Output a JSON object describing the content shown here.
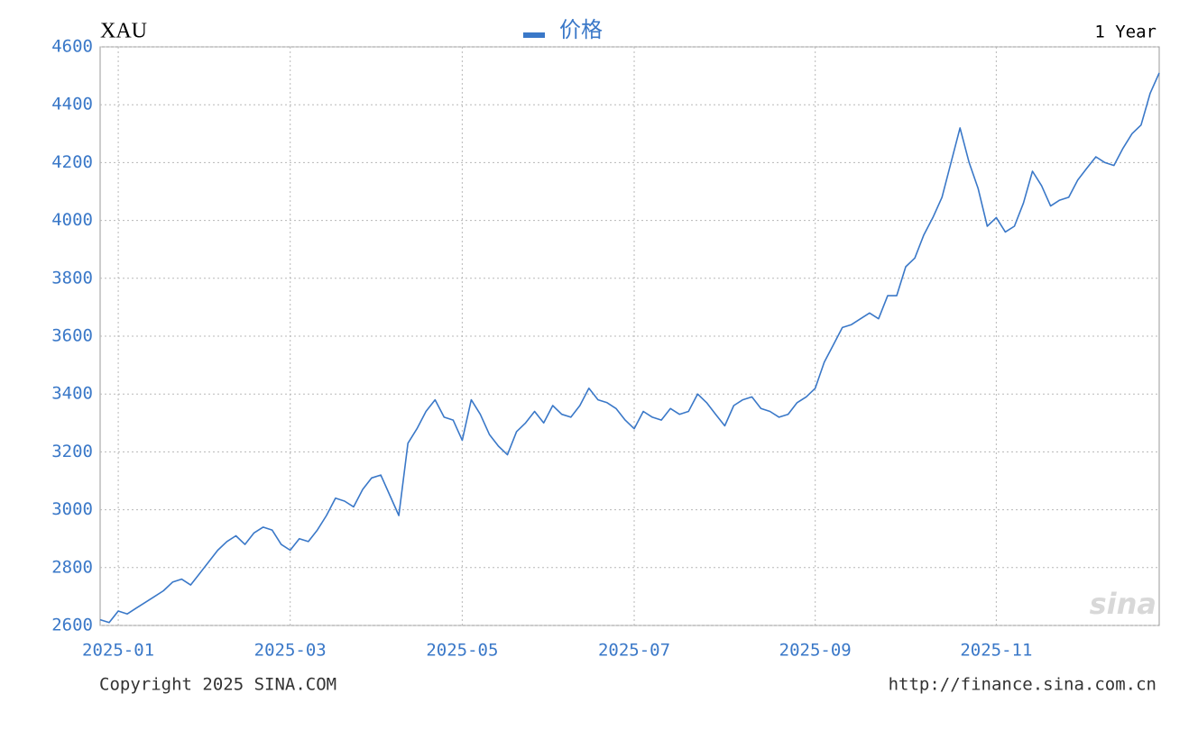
{
  "chart_data": {
    "type": "line",
    "title": "XAU",
    "period": "1 Year",
    "footer_left": "Copyright 2025 SINA.COM",
    "footer_right": "http://finance.sina.com.cn",
    "watermark": "sina",
    "categories": [
      null,
      null,
      "2025-01",
      null,
      null,
      null,
      null,
      null,
      null,
      null,
      null,
      null,
      null,
      null,
      null,
      null,
      null,
      null,
      null,
      null,
      null,
      "2025-03",
      null,
      null,
      null,
      null,
      null,
      null,
      null,
      null,
      null,
      null,
      null,
      null,
      null,
      null,
      null,
      null,
      null,
      null,
      "2025-05",
      null,
      null,
      null,
      null,
      null,
      null,
      null,
      null,
      null,
      null,
      null,
      null,
      null,
      null,
      null,
      null,
      null,
      null,
      "2025-07",
      null,
      null,
      null,
      null,
      null,
      null,
      null,
      null,
      null,
      null,
      null,
      null,
      null,
      null,
      null,
      null,
      null,
      null,
      null,
      "2025-09",
      null,
      null,
      null,
      null,
      null,
      null,
      null,
      null,
      null,
      null,
      null,
      null,
      null,
      null,
      null,
      null,
      null,
      null,
      null,
      "2025-11",
      null,
      null,
      null,
      null,
      null,
      null,
      null,
      null,
      null,
      null,
      null,
      null,
      null,
      null,
      null,
      null,
      null,
      null
    ],
    "series": [
      {
        "name": "价格",
        "color": "#3a78c8",
        "values": [
          2620,
          2610,
          2650,
          2640,
          2660,
          2680,
          2700,
          2720,
          2750,
          2760,
          2740,
          2780,
          2820,
          2860,
          2890,
          2910,
          2880,
          2920,
          2940,
          2930,
          2880,
          2860,
          2900,
          2890,
          2930,
          2980,
          3040,
          3030,
          3010,
          3070,
          3110,
          3120,
          3050,
          2980,
          3230,
          3280,
          3340,
          3380,
          3320,
          3310,
          3240,
          3380,
          3330,
          3260,
          3220,
          3190,
          3270,
          3300,
          3340,
          3300,
          3360,
          3330,
          3320,
          3360,
          3420,
          3380,
          3370,
          3350,
          3310,
          3280,
          3340,
          3320,
          3310,
          3350,
          3330,
          3340,
          3400,
          3370,
          3330,
          3290,
          3360,
          3380,
          3390,
          3350,
          3340,
          3320,
          3330,
          3370,
          3390,
          3420,
          3510,
          3570,
          3630,
          3640,
          3660,
          3680,
          3660,
          3740,
          3740,
          3840,
          3870,
          3950,
          4010,
          4080,
          4200,
          4320,
          4200,
          4110,
          3980,
          4010,
          3960,
          3980,
          4060,
          4170,
          4120,
          4050,
          4070,
          4080,
          4140,
          4180,
          4220,
          4200,
          4190,
          4250,
          4300,
          4330,
          4440,
          4510
        ]
      }
    ],
    "ylim": [
      2600,
      4600
    ],
    "yticks": [
      2600,
      2800,
      3000,
      3200,
      3400,
      3600,
      3800,
      4000,
      4200,
      4400,
      4600
    ],
    "grid": true
  }
}
